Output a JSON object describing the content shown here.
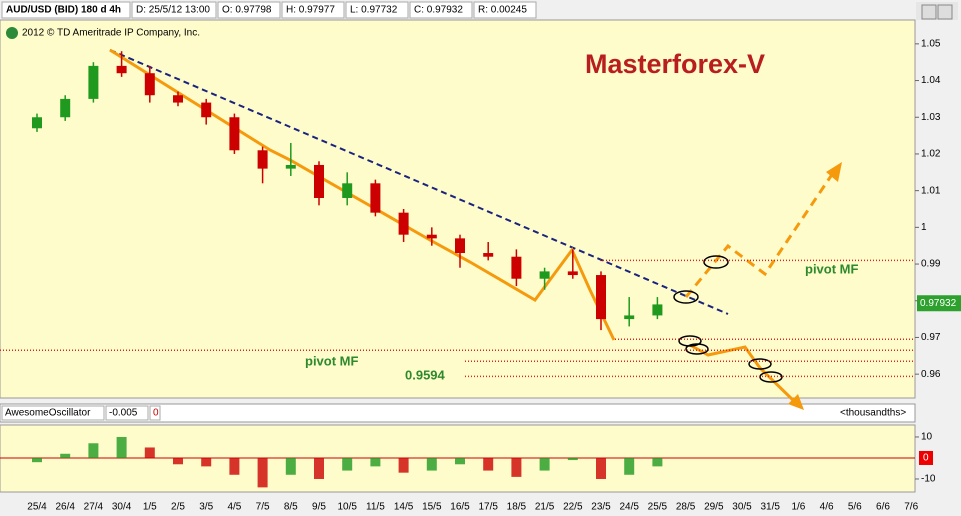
{
  "chart_data": {
    "type": "candlestick",
    "header": [
      "AUD/USD (BID) 180 d 4h",
      "D: 25/5/12 13:00",
      "O: 0.97798",
      "H: 0.97977",
      "L: 0.97732",
      "C: 0.97932",
      "R: 0.00245"
    ],
    "copyright": "2012 © TD Ameritrade IP Company, Inc.",
    "title": "Masterforex-V",
    "categories": [
      "25/4",
      "26/4",
      "27/4",
      "30/4",
      "1/5",
      "2/5",
      "3/5",
      "4/5",
      "7/5",
      "8/5",
      "9/5",
      "10/5",
      "11/5",
      "14/5",
      "15/5",
      "16/5",
      "17/5",
      "18/5",
      "21/5",
      "22/5",
      "23/5",
      "24/5",
      "25/5",
      "28/5",
      "29/5",
      "30/5",
      "31/5",
      "1/6",
      "4/6",
      "5/6",
      "6/6",
      "7/6"
    ],
    "open": [
      1.027,
      1.03,
      1.035,
      1.044,
      1.042,
      1.036,
      1.034,
      1.03,
      1.021,
      1.016,
      1.017,
      1.008,
      1.012,
      1.004,
      0.998,
      0.997,
      0.993,
      0.992,
      0.986,
      0.988,
      0.987,
      0.975,
      0.976,
      null,
      null,
      null,
      null,
      null,
      null,
      null,
      null,
      null
    ],
    "high": [
      1.031,
      1.036,
      1.045,
      1.048,
      1.044,
      1.037,
      1.035,
      1.031,
      1.022,
      1.023,
      1.018,
      1.015,
      1.013,
      1.005,
      1.0,
      0.998,
      0.996,
      0.994,
      0.989,
      0.994,
      0.988,
      0.981,
      0.981,
      null,
      null,
      null,
      null,
      null,
      null,
      null,
      null,
      null
    ],
    "low": [
      1.026,
      1.029,
      1.034,
      1.041,
      1.034,
      1.033,
      1.028,
      1.02,
      1.012,
      1.014,
      1.006,
      1.006,
      1.003,
      0.996,
      0.995,
      0.989,
      0.991,
      0.984,
      0.983,
      0.986,
      0.972,
      0.973,
      0.975,
      null,
      null,
      null,
      null,
      null,
      null,
      null,
      null,
      null
    ],
    "close": [
      1.03,
      1.035,
      1.044,
      1.042,
      1.036,
      1.034,
      1.03,
      1.021,
      1.016,
      1.017,
      1.008,
      1.012,
      1.004,
      0.998,
      0.997,
      0.993,
      0.992,
      0.986,
      0.988,
      0.987,
      0.975,
      0.976,
      0.979,
      null,
      null,
      null,
      null,
      null,
      null,
      null,
      null,
      null
    ],
    "up_color": "#1f9a1f",
    "down_color": "#cc0000",
    "ylim": [
      0.9535,
      1.0565
    ],
    "yticks": [
      1.05,
      1.04,
      1.03,
      1.02,
      1.01,
      1,
      0.99,
      0.98,
      0.97,
      0.96
    ],
    "last_value": 0.97932,
    "levels": [
      0.991,
      0.9695,
      0.9665,
      0.9635,
      0.9594
    ],
    "annotations": [
      "pivot MF",
      "pivot MF"
    ],
    "oscillator": {
      "type": "bar",
      "header": [
        "AwesomeOscillator",
        "-0.005",
        "0"
      ],
      "units": "<thousandths>",
      "values": [
        -2,
        2,
        7,
        10,
        5,
        -3,
        -4,
        -8,
        -14,
        -8,
        -10,
        -6,
        -4,
        -7,
        -6,
        -3,
        -6,
        -9,
        -6,
        -1,
        -10,
        -8,
        -4,
        null,
        null,
        null,
        null,
        null,
        null,
        null,
        null,
        null
      ],
      "ylim": [
        -16.2,
        15.7
      ],
      "yticks": [
        10,
        0,
        -10
      ]
    }
  }
}
